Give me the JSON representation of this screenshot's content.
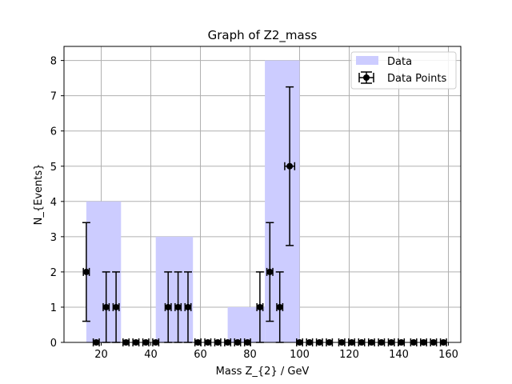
{
  "chart_data": {
    "type": "bar",
    "title": "Graph of Z2_mass",
    "xlabel": "Mass Z_{2} / GeV",
    "ylabel": "N_{Events}",
    "xlim": [
      5,
      165
    ],
    "ylim": [
      0,
      8.4
    ],
    "xticks": [
      "20",
      "40",
      "60",
      "80",
      "100",
      "120",
      "140",
      "160"
    ],
    "xtick_values": [
      20,
      40,
      60,
      80,
      100,
      120,
      140,
      160
    ],
    "yticks": [
      "0",
      "1",
      "2",
      "3",
      "4",
      "5",
      "6",
      "7",
      "8"
    ],
    "ytick_values": [
      0,
      1,
      2,
      3,
      4,
      5,
      6,
      7,
      8
    ],
    "grid": true,
    "legend_position": "top-right",
    "colors": {
      "bars": "#ccccff",
      "points": "#000000",
      "grid": "#b0b0b0"
    },
    "histogram": {
      "name": "Data",
      "bins": [
        {
          "x0": 14,
          "x1": 28,
          "value": 4
        },
        {
          "x0": 28,
          "x1": 42,
          "value": 0
        },
        {
          "x0": 42,
          "x1": 57,
          "value": 3
        },
        {
          "x0": 57,
          "x1": 71,
          "value": 0
        },
        {
          "x0": 71,
          "x1": 86,
          "value": 1
        },
        {
          "x0": 86,
          "x1": 100,
          "value": 8
        }
      ]
    },
    "points": {
      "name": "Data Points",
      "values": [
        {
          "x": 14,
          "y": 2,
          "ylo": 0.6,
          "yhi": 3.4,
          "xerr": 1.2
        },
        {
          "x": 18,
          "y": 0
        },
        {
          "x": 22,
          "y": 1,
          "ylo": 0,
          "yhi": 2,
          "xerr": 1.2
        },
        {
          "x": 26,
          "y": 1,
          "ylo": 0,
          "yhi": 2,
          "xerr": 1.2
        },
        {
          "x": 30,
          "y": 0
        },
        {
          "x": 34,
          "y": 0
        },
        {
          "x": 38,
          "y": 0
        },
        {
          "x": 42,
          "y": 0
        },
        {
          "x": 47,
          "y": 1,
          "ylo": 0,
          "yhi": 2,
          "xerr": 1.2
        },
        {
          "x": 51,
          "y": 1,
          "ylo": 0,
          "yhi": 2,
          "xerr": 1.2
        },
        {
          "x": 55,
          "y": 1,
          "ylo": 0,
          "yhi": 2,
          "xerr": 1.2
        },
        {
          "x": 59,
          "y": 0
        },
        {
          "x": 63,
          "y": 0
        },
        {
          "x": 67,
          "y": 0
        },
        {
          "x": 71,
          "y": 0
        },
        {
          "x": 75,
          "y": 0
        },
        {
          "x": 79,
          "y": 0
        },
        {
          "x": 84,
          "y": 1,
          "ylo": 0,
          "yhi": 2,
          "xerr": 1.2
        },
        {
          "x": 88,
          "y": 2,
          "ylo": 0.6,
          "yhi": 3.4,
          "xerr": 1.2
        },
        {
          "x": 92,
          "y": 1,
          "ylo": 0,
          "yhi": 2,
          "xerr": 1.2
        },
        {
          "x": 96,
          "y": 5,
          "ylo": 2.75,
          "yhi": 7.25,
          "xerr": 2
        },
        {
          "x": 100,
          "y": 0
        },
        {
          "x": 104,
          "y": 0
        },
        {
          "x": 108,
          "y": 0
        },
        {
          "x": 112,
          "y": 0
        },
        {
          "x": 117,
          "y": 0
        },
        {
          "x": 121,
          "y": 0
        },
        {
          "x": 125,
          "y": 0
        },
        {
          "x": 129,
          "y": 0
        },
        {
          "x": 133,
          "y": 0
        },
        {
          "x": 137,
          "y": 0
        },
        {
          "x": 141,
          "y": 0
        },
        {
          "x": 146,
          "y": 0
        },
        {
          "x": 150,
          "y": 0
        },
        {
          "x": 154,
          "y": 0
        },
        {
          "x": 158,
          "y": 0
        }
      ]
    }
  }
}
